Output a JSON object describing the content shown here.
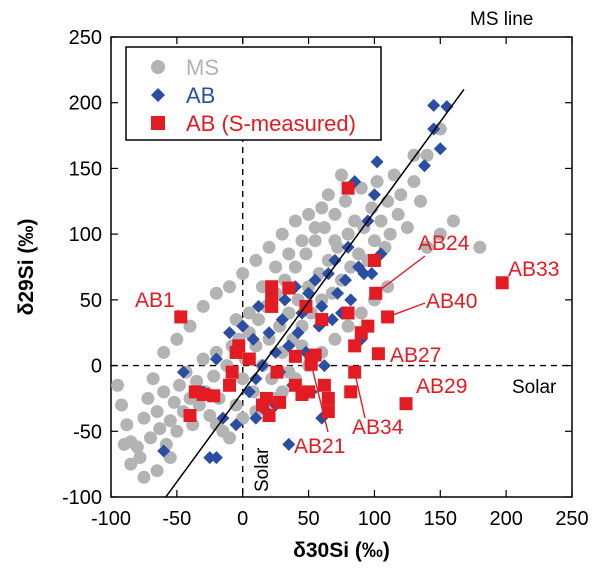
{
  "chart_data": {
    "type": "scatter",
    "xlabel": "δ30Si (‰)",
    "ylabel": "δ29Si (‰)",
    "xlim": [
      -100,
      250
    ],
    "ylim": [
      -100,
      250
    ],
    "x_ticks": [
      "-100",
      "-50",
      "0",
      "50",
      "100",
      "150",
      "200",
      "250"
    ],
    "y_ticks": [
      "-100",
      "-50",
      "0",
      "50",
      "100",
      "150",
      "200",
      "250"
    ],
    "grid": false,
    "legend_position": "top-left",
    "reference_lines": {
      "ms_line": {
        "label": "MS line",
        "slope": 1.37,
        "intercept": -20
      },
      "solar_x": {
        "label": "Solar",
        "value": 0
      },
      "solar_y": {
        "label": "Solar",
        "value": 0
      }
    },
    "series": [
      {
        "name": "MS",
        "marker": "circle",
        "color": "#b3b3b3",
        "points": [
          [
            -95,
            -15
          ],
          [
            -92,
            -30
          ],
          [
            -88,
            -45
          ],
          [
            -85,
            -58
          ],
          [
            -80,
            -62
          ],
          [
            -78,
            -70
          ],
          [
            -75,
            -40
          ],
          [
            -72,
            -25
          ],
          [
            -70,
            -55
          ],
          [
            -68,
            -10
          ],
          [
            -65,
            -35
          ],
          [
            -63,
            -48
          ],
          [
            -60,
            -20
          ],
          [
            -58,
            -60
          ],
          [
            -55,
            -42
          ],
          [
            -52,
            -28
          ],
          [
            -50,
            -50
          ],
          [
            -48,
            -15
          ],
          [
            -45,
            -35
          ],
          [
            -43,
            -5
          ],
          [
            -40,
            -25
          ],
          [
            -38,
            -45
          ],
          [
            -35,
            -12
          ],
          [
            -33,
            -30
          ],
          [
            -30,
            5
          ],
          [
            -28,
            -20
          ],
          [
            -25,
            -38
          ],
          [
            -22,
            -8
          ],
          [
            -20,
            10
          ],
          [
            -18,
            -25
          ],
          [
            -15,
            -50
          ],
          [
            -12,
            0
          ],
          [
            -10,
            -15
          ],
          [
            -8,
            15
          ],
          [
            -5,
            -30
          ],
          [
            -3,
            20
          ],
          [
            0,
            -10
          ],
          [
            2,
            5
          ],
          [
            5,
            25
          ],
          [
            8,
            -20
          ],
          [
            10,
            15
          ],
          [
            12,
            35
          ],
          [
            15,
            0
          ],
          [
            18,
            45
          ],
          [
            20,
            20
          ],
          [
            22,
            -10
          ],
          [
            25,
            55
          ],
          [
            28,
            30
          ],
          [
            30,
            10
          ],
          [
            32,
            65
          ],
          [
            35,
            40
          ],
          [
            38,
            20
          ],
          [
            40,
            75
          ],
          [
            42,
            50
          ],
          [
            45,
            30
          ],
          [
            48,
            85
          ],
          [
            50,
            60
          ],
          [
            52,
            40
          ],
          [
            55,
            95
          ],
          [
            58,
            70
          ],
          [
            60,
            50
          ],
          [
            62,
            105
          ],
          [
            65,
            80
          ],
          [
            68,
            55
          ],
          [
            70,
            115
          ],
          [
            72,
            90
          ],
          [
            75,
            65
          ],
          [
            78,
            125
          ],
          [
            80,
            100
          ],
          [
            82,
            75
          ],
          [
            85,
            110
          ],
          [
            88,
            85
          ],
          [
            90,
            135
          ],
          [
            92,
            105
          ],
          [
            95,
            80
          ],
          [
            98,
            120
          ],
          [
            100,
            95
          ],
          [
            102,
            140
          ],
          [
            105,
            110
          ],
          [
            108,
            90
          ],
          [
            110,
            125
          ],
          [
            112,
            100
          ],
          [
            115,
            145
          ],
          [
            118,
            115
          ],
          [
            120,
            130
          ],
          [
            125,
            105
          ],
          [
            130,
            140
          ],
          [
            135,
            125
          ],
          [
            140,
            160
          ],
          [
            150,
            180
          ],
          [
            -40,
            30
          ],
          [
            -30,
            45
          ],
          [
            -20,
            55
          ],
          [
            -10,
            60
          ],
          [
            0,
            70
          ],
          [
            10,
            80
          ],
          [
            20,
            90
          ],
          [
            30,
            100
          ],
          [
            40,
            110
          ],
          [
            50,
            115
          ],
          [
            60,
            120
          ],
          [
            70,
            95
          ],
          [
            -20,
            -45
          ],
          [
            -10,
            -55
          ],
          [
            0,
            -40
          ],
          [
            10,
            -35
          ],
          [
            20,
            -30
          ],
          [
            30,
            -20
          ],
          [
            40,
            -10
          ],
          [
            50,
            0
          ],
          [
            60,
            10
          ],
          [
            70,
            20
          ],
          [
            80,
            30
          ],
          [
            90,
            40
          ],
          [
            100,
            50
          ],
          [
            110,
            60
          ],
          [
            -60,
            10
          ],
          [
            -50,
            20
          ],
          [
            -55,
            -70
          ],
          [
            -65,
            -80
          ],
          [
            -75,
            -85
          ],
          [
            -85,
            -75
          ],
          [
            -90,
            -60
          ],
          [
            15,
            60
          ],
          [
            25,
            75
          ],
          [
            35,
            85
          ],
          [
            45,
            95
          ],
          [
            55,
            105
          ],
          [
            65,
            130
          ],
          [
            75,
            145
          ],
          [
            130,
            160
          ],
          [
            180,
            90
          ],
          [
            150,
            100
          ],
          [
            160,
            110
          ],
          [
            140,
            90
          ],
          [
            5,
            40
          ],
          [
            -5,
            35
          ],
          [
            35,
            -5
          ],
          [
            45,
            15
          ],
          [
            25,
            -25
          ]
        ]
      },
      {
        "name": "AB",
        "marker": "diamond",
        "color": "#2b4ea2",
        "points": [
          [
            -60,
            -65
          ],
          [
            -45,
            -5
          ],
          [
            -30,
            -20
          ],
          [
            -20,
            5
          ],
          [
            -15,
            -40
          ],
          [
            -10,
            25
          ],
          [
            -5,
            -45
          ],
          [
            0,
            30
          ],
          [
            5,
            -20
          ],
          [
            8,
            20
          ],
          [
            10,
            -10
          ],
          [
            12,
            45
          ],
          [
            15,
            0
          ],
          [
            18,
            -35
          ],
          [
            20,
            25
          ],
          [
            22,
            55
          ],
          [
            25,
            10
          ],
          [
            28,
            -5
          ],
          [
            30,
            35
          ],
          [
            32,
            50
          ],
          [
            35,
            15
          ],
          [
            38,
            -15
          ],
          [
            40,
            60
          ],
          [
            42,
            25
          ],
          [
            45,
            40
          ],
          [
            48,
            10
          ],
          [
            50,
            55
          ],
          [
            52,
            -20
          ],
          [
            55,
            65
          ],
          [
            58,
            30
          ],
          [
            60,
            45
          ],
          [
            62,
            0
          ],
          [
            65,
            70
          ],
          [
            68,
            35
          ],
          [
            70,
            80
          ],
          [
            72,
            55
          ],
          [
            75,
            40
          ],
          [
            78,
            65
          ],
          [
            80,
            90
          ],
          [
            82,
            50
          ],
          [
            85,
            140
          ],
          [
            88,
            75
          ],
          [
            90,
            20
          ],
          [
            92,
            70
          ],
          [
            95,
            110
          ],
          [
            98,
            70
          ],
          [
            100,
            130
          ],
          [
            102,
            155
          ],
          [
            105,
            85
          ],
          [
            138,
            152
          ],
          [
            145,
            198
          ],
          [
            150,
            165
          ],
          [
            155,
            197
          ],
          [
            145,
            180
          ],
          [
            -20,
            -70
          ],
          [
            -25,
            -70
          ],
          [
            10,
            -40
          ],
          [
            25,
            -30
          ],
          [
            35,
            -60
          ],
          [
            60,
            -40
          ]
        ]
      },
      {
        "name": "AB (S-measured)",
        "marker": "square",
        "color": "#e31b23",
        "points": [
          [
            -47,
            37
          ],
          [
            -40,
            -38
          ],
          [
            -36,
            -20
          ],
          [
            -30,
            -22
          ],
          [
            -22,
            -23
          ],
          [
            -10,
            -15
          ],
          [
            -8,
            -5
          ],
          [
            -5,
            10
          ],
          [
            -3,
            15
          ],
          [
            5,
            5
          ],
          [
            15,
            -30
          ],
          [
            18,
            -25
          ],
          [
            20,
            -38
          ],
          [
            22,
            50
          ],
          [
            22,
            45
          ],
          [
            22,
            60
          ],
          [
            26,
            -5
          ],
          [
            28,
            -28
          ],
          [
            35,
            59
          ],
          [
            40,
            -15
          ],
          [
            40,
            7
          ],
          [
            45,
            -22
          ],
          [
            48,
            45
          ],
          [
            50,
            -20
          ],
          [
            52,
            5
          ],
          [
            55,
            8
          ],
          [
            60,
            35
          ],
          [
            62,
            -15
          ],
          [
            65,
            -35
          ],
          [
            65,
            -25
          ],
          [
            80,
            135
          ],
          [
            80,
            40
          ],
          [
            82,
            -20
          ],
          [
            85,
            15
          ],
          [
            90,
            25
          ],
          [
            95,
            30
          ],
          [
            100,
            80
          ],
          [
            101,
            55
          ],
          [
            103,
            9
          ],
          [
            110,
            37
          ],
          [
            124,
            -29
          ],
          [
            197,
            63
          ],
          [
            85,
            -5
          ],
          [
            52,
            1
          ]
        ]
      }
    ],
    "annotations": [
      {
        "text": "AB24",
        "point": [
          101,
          55
        ]
      },
      {
        "text": "AB33",
        "point": [
          197,
          63
        ]
      },
      {
        "text": "AB1",
        "point": [
          -47,
          37
        ]
      },
      {
        "text": "AB40",
        "point": [
          110,
          37
        ]
      },
      {
        "text": "AB27",
        "point": [
          103,
          9
        ]
      },
      {
        "text": "AB29",
        "point": [
          124,
          -29
        ]
      },
      {
        "text": "AB34",
        "point": [
          85,
          -5
        ]
      },
      {
        "text": "AB21",
        "point": [
          52,
          1
        ]
      }
    ]
  }
}
